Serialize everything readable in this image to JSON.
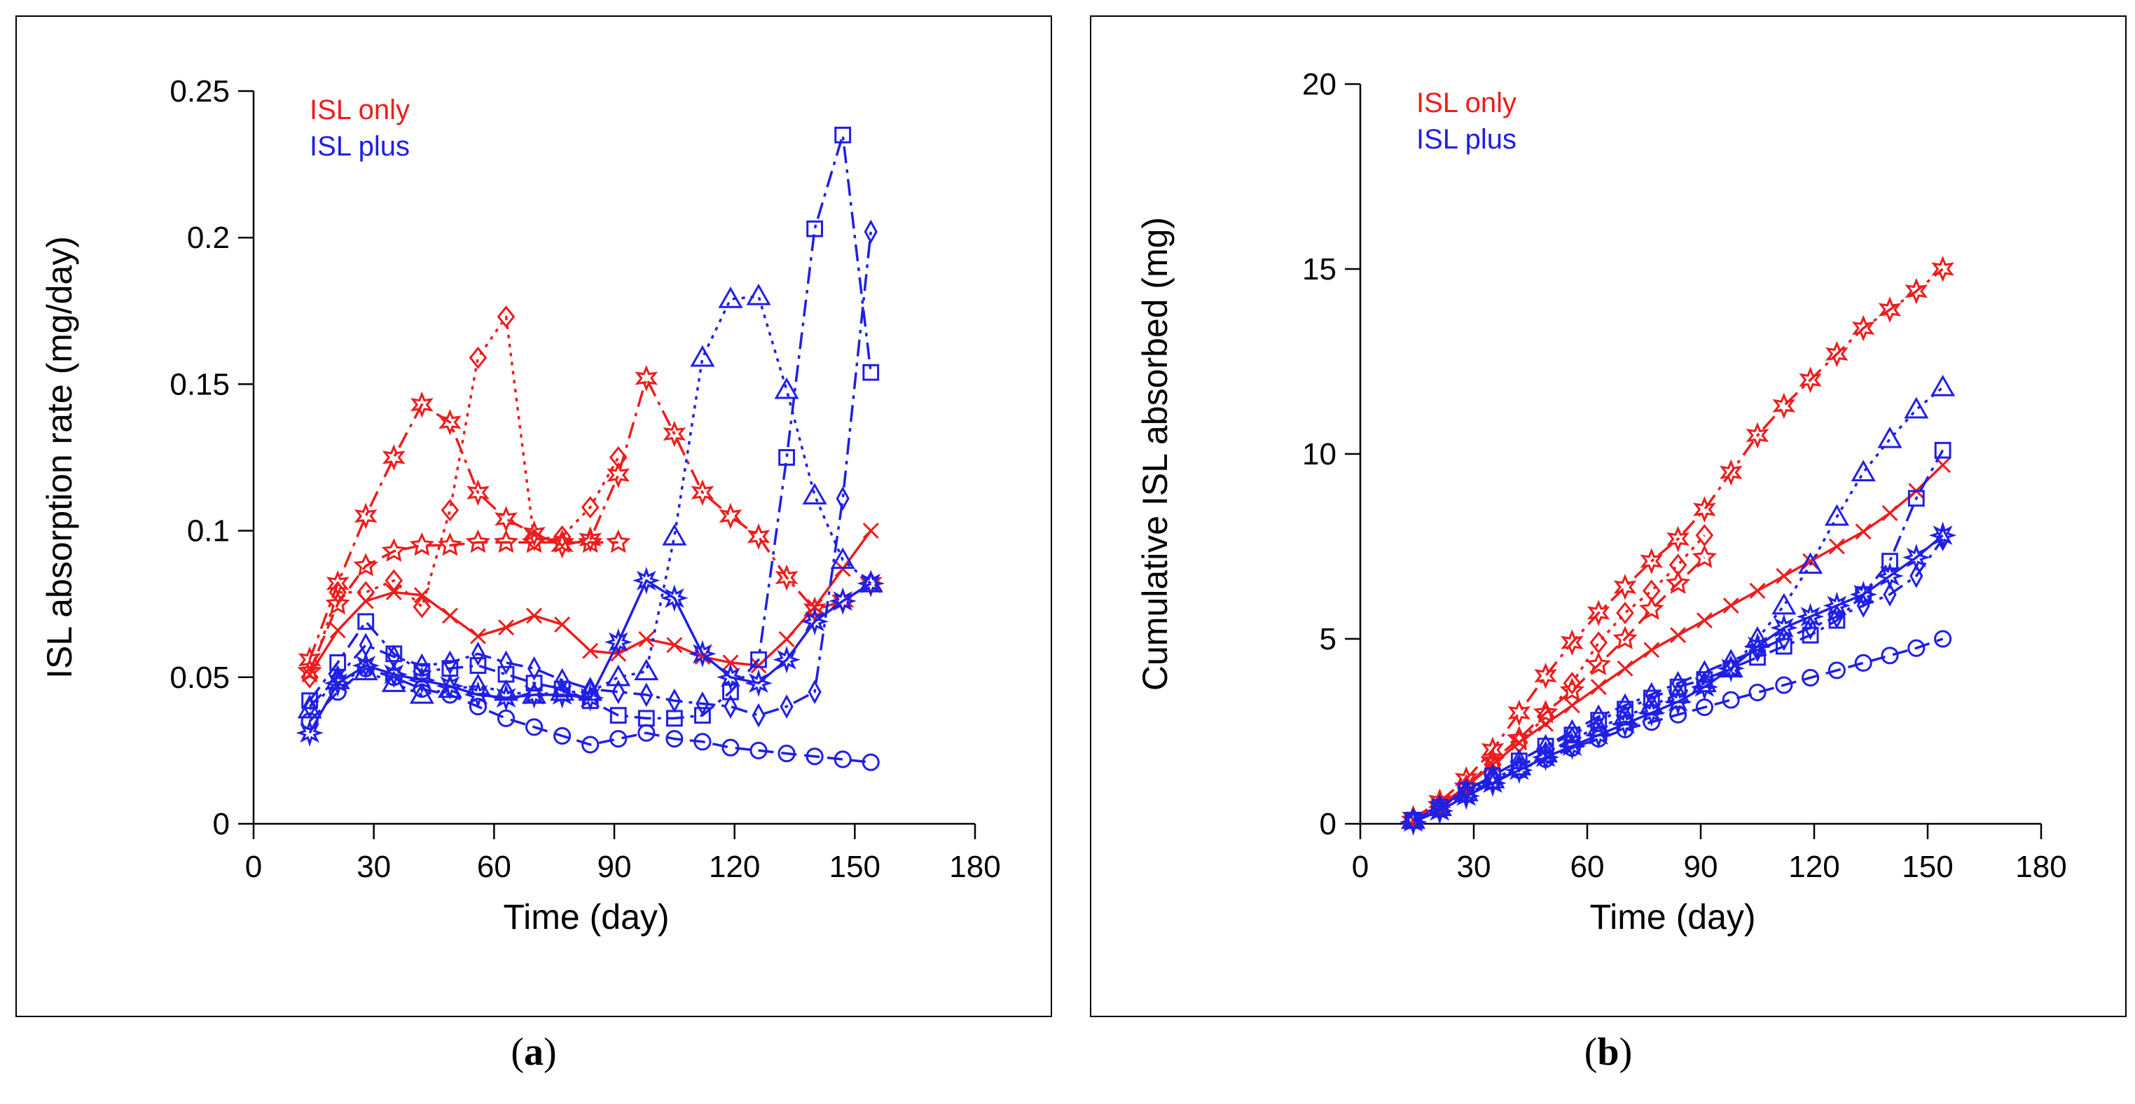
{
  "colors": {
    "isl_only": "#ee1c1c",
    "isl_plus": "#1f1fe6",
    "axis": "#000000"
  },
  "panel_labels": [
    {
      "open": "(",
      "letter": "a",
      "close": ")"
    },
    {
      "open": "(",
      "letter": "b",
      "close": ")"
    }
  ],
  "chart_data": [
    {
      "type": "line",
      "title": "",
      "xlabel": "Time (day)",
      "ylabel": "ISL absorption rate  (mg/day)",
      "xlim": [
        0,
        180
      ],
      "ylim": [
        0,
        0.25
      ],
      "xticks": [
        0,
        30,
        60,
        90,
        120,
        150,
        180
      ],
      "xtick_labels": [
        "0",
        "30",
        "60",
        "90",
        "120",
        "150",
        "180"
      ],
      "yticks": [
        0,
        0.05,
        0.1,
        0.15,
        0.2,
        0.25
      ],
      "ytick_labels": [
        "0",
        "0.05",
        "0.1",
        "0.15",
        "0.2",
        "0.25"
      ],
      "legend": [
        {
          "label": "ISL only",
          "color": "#ee1c1c"
        },
        {
          "label": "ISL plus",
          "color": "#1f1fe6"
        }
      ],
      "legend_position": "top-left",
      "series": [
        {
          "name": "ISL only 1",
          "group": "ISL only",
          "color": "#ee1c1c",
          "dash": "solid",
          "marker": "x",
          "x": [
            14,
            21,
            28,
            35,
            42,
            49,
            56,
            63,
            70,
            77,
            84,
            91,
            98,
            105,
            112,
            119,
            126,
            133,
            140,
            147,
            154
          ],
          "y": [
            0.051,
            0.066,
            0.076,
            0.079,
            0.078,
            0.071,
            0.064,
            0.067,
            0.071,
            0.068,
            0.059,
            0.058,
            0.063,
            0.061,
            0.057,
            0.055,
            0.054,
            0.063,
            0.074,
            0.087,
            0.1
          ]
        },
        {
          "name": "ISL only 2",
          "group": "ISL only",
          "color": "#ee1c1c",
          "dash": "dashdot",
          "marker": "star6",
          "x": [
            14,
            21,
            28,
            35,
            42,
            49,
            56,
            63,
            70,
            77,
            84,
            91,
            98,
            105,
            112,
            119,
            126,
            133,
            140,
            147,
            154
          ],
          "y": [
            0.056,
            0.082,
            0.105,
            0.125,
            0.143,
            0.137,
            0.113,
            0.104,
            0.099,
            0.095,
            0.097,
            0.119,
            0.152,
            0.133,
            0.113,
            0.105,
            0.098,
            0.084,
            0.073,
            0.076,
            0.082
          ]
        },
        {
          "name": "ISL only 3",
          "group": "ISL only",
          "color": "#ee1c1c",
          "dash": "dotted",
          "marker": "diamond",
          "x": [
            14,
            21,
            28,
            35,
            42,
            49,
            56,
            63,
            70,
            77,
            84,
            91
          ],
          "y": [
            0.05,
            0.079,
            0.079,
            0.083,
            0.074,
            0.107,
            0.159,
            0.173,
            0.097,
            0.098,
            0.108,
            0.125
          ]
        },
        {
          "name": "ISL only 4",
          "group": "ISL only",
          "color": "#ee1c1c",
          "dash": "dashed",
          "marker": "star5",
          "x": [
            14,
            21,
            28,
            35,
            42,
            49,
            56,
            63,
            70,
            77,
            84,
            91
          ],
          "y": [
            0.052,
            0.075,
            0.088,
            0.093,
            0.095,
            0.095,
            0.096,
            0.096,
            0.096,
            0.096,
            0.096,
            0.096
          ]
        },
        {
          "name": "ISL plus 1",
          "group": "ISL plus",
          "color": "#1f1fe6",
          "dash": "dashdot",
          "marker": "square",
          "x": [
            14,
            21,
            28,
            35,
            42,
            49,
            56,
            63,
            70,
            77,
            84,
            91,
            98,
            105,
            112,
            119,
            126,
            133,
            140,
            147,
            154
          ],
          "y": [
            0.042,
            0.055,
            0.069,
            0.058,
            0.052,
            0.053,
            0.054,
            0.051,
            0.048,
            0.046,
            0.042,
            0.037,
            0.036,
            0.036,
            0.037,
            0.045,
            0.056,
            0.125,
            0.203,
            0.235,
            0.154
          ]
        },
        {
          "name": "ISL plus 2",
          "group": "ISL plus",
          "color": "#1f1fe6",
          "dash": "dotted",
          "marker": "triangle",
          "x": [
            14,
            21,
            28,
            35,
            42,
            49,
            56,
            63,
            70,
            77,
            84,
            91,
            98,
            105,
            112,
            119,
            126,
            133,
            140,
            147,
            154
          ],
          "y": [
            0.039,
            0.049,
            0.052,
            0.048,
            0.044,
            0.046,
            0.047,
            0.045,
            0.044,
            0.045,
            0.045,
            0.05,
            0.052,
            0.098,
            0.159,
            0.179,
            0.18,
            0.148,
            0.112,
            0.09,
            0.082
          ]
        },
        {
          "name": "ISL plus 3",
          "group": "ISL plus",
          "color": "#1f1fe6",
          "dash": "dashed",
          "marker": "circle",
          "x": [
            14,
            21,
            28,
            35,
            42,
            49,
            56,
            63,
            70,
            77,
            84,
            91,
            98,
            105,
            112,
            119,
            126,
            133,
            140,
            147,
            154
          ],
          "y": [
            0.035,
            0.045,
            0.053,
            0.05,
            0.046,
            0.044,
            0.04,
            0.036,
            0.033,
            0.03,
            0.027,
            0.029,
            0.031,
            0.029,
            0.028,
            0.026,
            0.025,
            0.024,
            0.023,
            0.022,
            0.021
          ]
        },
        {
          "name": "ISL plus 4",
          "group": "ISL plus",
          "color": "#1f1fe6",
          "dash": "dashdot",
          "marker": "thin-diamond",
          "x": [
            14,
            21,
            28,
            35,
            42,
            49,
            56,
            63,
            70,
            77,
            84,
            91,
            98,
            105,
            112,
            119,
            126,
            133,
            140,
            147,
            154
          ],
          "y": [
            0.04,
            0.05,
            0.061,
            0.057,
            0.054,
            0.055,
            0.058,
            0.055,
            0.053,
            0.049,
            0.046,
            0.045,
            0.044,
            0.042,
            0.041,
            0.04,
            0.037,
            0.04,
            0.045,
            0.111,
            0.202
          ]
        },
        {
          "name": "ISL plus 5",
          "group": "ISL plus",
          "color": "#1f1fe6",
          "dash": "solid",
          "marker": "star8",
          "x": [
            14,
            21,
            28,
            35,
            42,
            49,
            56,
            63,
            70,
            77,
            84,
            91,
            98,
            105,
            112,
            119,
            126,
            133,
            140,
            147,
            154
          ],
          "y": [
            0.031,
            0.048,
            0.054,
            0.051,
            0.049,
            0.047,
            0.044,
            0.043,
            0.044,
            0.044,
            0.043,
            0.062,
            0.083,
            0.077,
            0.058,
            0.05,
            0.048,
            0.056,
            0.069,
            0.076,
            0.082
          ]
        }
      ]
    },
    {
      "type": "line",
      "title": "",
      "xlabel": "Time (day)",
      "ylabel": "Cumulative ISL absorbed (mg)",
      "xlim": [
        0,
        180
      ],
      "ylim": [
        0,
        20
      ],
      "xticks": [
        0,
        30,
        60,
        90,
        120,
        150,
        180
      ],
      "xtick_labels": [
        "0",
        "30",
        "60",
        "90",
        "120",
        "150",
        "180"
      ],
      "yticks": [
        0,
        5,
        10,
        15,
        20
      ],
      "ytick_labels": [
        "0",
        "5",
        "10",
        "15",
        "20"
      ],
      "legend": [
        {
          "label": "ISL only",
          "color": "#ee1c1c"
        },
        {
          "label": "ISL plus",
          "color": "#1f1fe6"
        }
      ],
      "legend_position": "top-left",
      "series": [
        {
          "name": "ISL only 1",
          "group": "ISL only",
          "color": "#ee1c1c",
          "dash": "solid",
          "marker": "x",
          "x": [
            14,
            21,
            28,
            35,
            42,
            49,
            56,
            63,
            70,
            77,
            84,
            91,
            98,
            105,
            112,
            119,
            126,
            133,
            140,
            147,
            154
          ],
          "y": [
            0.1,
            0.5,
            1.0,
            1.6,
            2.2,
            2.7,
            3.2,
            3.7,
            4.2,
            4.7,
            5.1,
            5.5,
            5.9,
            6.3,
            6.7,
            7.1,
            7.5,
            7.9,
            8.4,
            9.0,
            9.7
          ]
        },
        {
          "name": "ISL only 2",
          "group": "ISL only",
          "color": "#ee1c1c",
          "dash": "dashdot",
          "marker": "star6",
          "x": [
            14,
            21,
            28,
            35,
            42,
            49,
            56,
            63,
            70,
            77,
            84,
            91,
            98,
            105,
            112,
            119,
            126,
            133,
            140,
            147,
            154
          ],
          "y": [
            0.15,
            0.6,
            1.2,
            2.0,
            3.0,
            4.0,
            4.9,
            5.7,
            6.4,
            7.1,
            7.7,
            8.5,
            9.5,
            10.5,
            11.3,
            12.0,
            12.7,
            13.4,
            13.9,
            14.4,
            15.0
          ]
        },
        {
          "name": "ISL only 3",
          "group": "ISL only",
          "color": "#ee1c1c",
          "dash": "dotted",
          "marker": "diamond",
          "x": [
            14,
            21,
            28,
            35,
            42,
            49,
            56,
            63,
            70,
            77,
            84,
            91
          ],
          "y": [
            0.1,
            0.5,
            1.0,
            1.6,
            2.2,
            2.9,
            3.8,
            4.9,
            5.7,
            6.3,
            7.0,
            7.8
          ]
        },
        {
          "name": "ISL only 4",
          "group": "ISL only",
          "color": "#ee1c1c",
          "dash": "dashed",
          "marker": "star5",
          "x": [
            14,
            21,
            28,
            35,
            42,
            49,
            56,
            63,
            70,
            77,
            84,
            91
          ],
          "y": [
            0.1,
            0.5,
            1.0,
            1.7,
            2.3,
            3.0,
            3.6,
            4.3,
            5.0,
            5.8,
            6.5,
            7.2
          ]
        },
        {
          "name": "ISL plus 1",
          "group": "ISL plus",
          "color": "#1f1fe6",
          "dash": "dashdot",
          "marker": "square",
          "x": [
            14,
            21,
            28,
            35,
            42,
            49,
            56,
            63,
            70,
            77,
            84,
            91,
            98,
            105,
            112,
            119,
            126,
            133,
            140,
            147,
            154
          ],
          "y": [
            0.1,
            0.45,
            0.9,
            1.3,
            1.7,
            2.1,
            2.4,
            2.8,
            3.1,
            3.4,
            3.7,
            3.9,
            4.2,
            4.5,
            4.8,
            5.1,
            5.5,
            6.2,
            7.1,
            8.8,
            10.1
          ]
        },
        {
          "name": "ISL plus 2",
          "group": "ISL plus",
          "color": "#1f1fe6",
          "dash": "dotted",
          "marker": "triangle",
          "x": [
            14,
            21,
            28,
            35,
            42,
            49,
            56,
            63,
            70,
            77,
            84,
            91,
            98,
            105,
            112,
            119,
            126,
            133,
            140,
            147,
            154
          ],
          "y": [
            0.1,
            0.45,
            0.85,
            1.2,
            1.55,
            1.9,
            2.3,
            2.6,
            2.9,
            3.2,
            3.5,
            3.8,
            4.2,
            5.0,
            5.9,
            7.0,
            8.3,
            9.5,
            10.4,
            11.2,
            11.8
          ]
        },
        {
          "name": "ISL plus 3",
          "group": "ISL plus",
          "color": "#1f1fe6",
          "dash": "dashed",
          "marker": "circle",
          "x": [
            14,
            21,
            28,
            35,
            42,
            49,
            56,
            63,
            70,
            77,
            84,
            91,
            98,
            105,
            112,
            119,
            126,
            133,
            140,
            147,
            154
          ],
          "y": [
            0.1,
            0.4,
            0.8,
            1.15,
            1.45,
            1.75,
            2.05,
            2.3,
            2.55,
            2.75,
            2.95,
            3.15,
            3.35,
            3.55,
            3.75,
            3.95,
            4.15,
            4.35,
            4.55,
            4.75,
            5.0
          ]
        },
        {
          "name": "ISL plus 4",
          "group": "ISL plus",
          "color": "#1f1fe6",
          "dash": "dashdot",
          "marker": "thin-diamond",
          "x": [
            14,
            21,
            28,
            35,
            42,
            49,
            56,
            63,
            70,
            77,
            84,
            91,
            98,
            105,
            112,
            119,
            126,
            133,
            140,
            147,
            154
          ],
          "y": [
            0.1,
            0.45,
            0.9,
            1.3,
            1.7,
            2.1,
            2.5,
            2.9,
            3.2,
            3.5,
            3.8,
            4.1,
            4.4,
            4.7,
            5.0,
            5.3,
            5.6,
            5.9,
            6.2,
            6.7,
            7.7
          ]
        },
        {
          "name": "ISL plus 5",
          "group": "ISL plus",
          "color": "#1f1fe6",
          "dash": "solid",
          "marker": "star8",
          "x": [
            14,
            21,
            28,
            35,
            42,
            49,
            56,
            63,
            70,
            77,
            84,
            91,
            98,
            105,
            112,
            119,
            126,
            133,
            140,
            147,
            154
          ],
          "y": [
            0.05,
            0.35,
            0.75,
            1.1,
            1.45,
            1.8,
            2.1,
            2.4,
            2.7,
            3.0,
            3.3,
            3.7,
            4.2,
            4.8,
            5.3,
            5.6,
            5.9,
            6.2,
            6.7,
            7.2,
            7.8
          ]
        }
      ]
    }
  ]
}
